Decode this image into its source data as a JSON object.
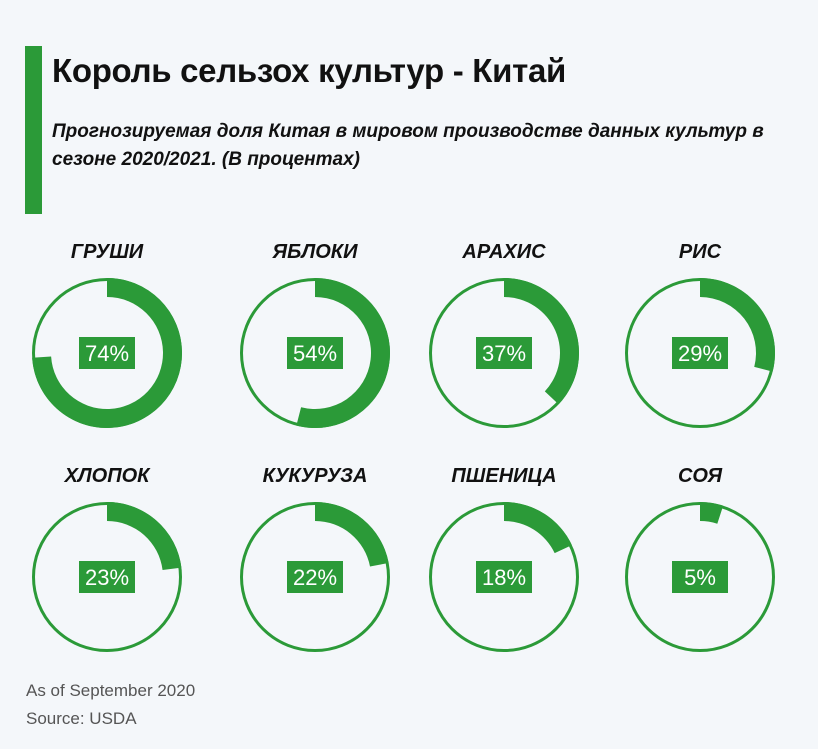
{
  "title": "Король сельзох культур - Китай",
  "subtitle": "Прогнозируемая доля Китая в мировом производстве данных культур в сезоне 2020/2021. (В процентах)",
  "footnote": {
    "as_of": "As of September 2020",
    "source": "Source: USDA"
  },
  "colors": {
    "accent": "#2b9a38",
    "background": "#f4f7fa",
    "label_text": "#ffffff"
  },
  "chart_data": {
    "type": "pie",
    "title": "Прогнозируемая доля Китая в мировом производстве данных культур в сезоне 2020/2021. (В процентах)",
    "unit": "%",
    "categories": [
      "ГРУШИ",
      "ЯБЛОКИ",
      "АРАХИС",
      "РИС",
      "ХЛОПОК",
      "КУКУРУЗА",
      "ПШЕНИЦА",
      "СОЯ"
    ],
    "values": [
      74,
      54,
      37,
      29,
      23,
      22,
      18,
      5
    ],
    "labels": [
      "74%",
      "54%",
      "37%",
      "29%",
      "23%",
      "22%",
      "18%",
      "5%"
    ],
    "legend": "none",
    "grid": false
  }
}
